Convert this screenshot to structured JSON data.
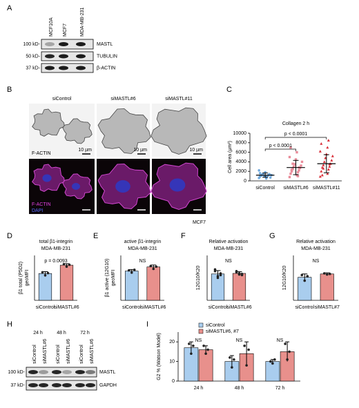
{
  "panel_labels": [
    "A",
    "B",
    "C",
    "D",
    "E",
    "F",
    "G",
    "H",
    "I"
  ],
  "blot_A": {
    "lanes": [
      "MCF10A",
      "MCF7",
      "MDA-MB-231"
    ],
    "rows": [
      {
        "marker": "100 kD-",
        "label": "MASTL"
      },
      {
        "marker": "50 kD-",
        "label": "TUBULIN"
      },
      {
        "marker": "37 kD-",
        "label": "β-ACTIN"
      }
    ]
  },
  "microscopy_B": {
    "columns": [
      "siControl",
      "siMASTL#6",
      "siMASTL#11"
    ],
    "scale_label": "10 µm",
    "stain_top": "F-ACTIN",
    "stain_bottom": [
      "F-ACTIN",
      "DAPI"
    ],
    "cell_line": "MCF7"
  },
  "blot_H": {
    "times": [
      "24 h",
      "48 h",
      "72 h"
    ],
    "lanes": [
      "siControl",
      "siMASTL#6",
      "siControl",
      "siMASTL#6",
      "siControl",
      "siMASTL#6"
    ],
    "rows": [
      {
        "marker": "100 kD-",
        "label": "MASTL"
      },
      {
        "marker": "37 kD-",
        "label": "GAPDH"
      }
    ]
  },
  "chart_data": [
    {
      "type": "strip",
      "title": "Collagen 2 h",
      "ylabel": [
        "Cell area (µm²)"
      ],
      "categories": [
        "siControl",
        "siMASTL#6",
        "siMASTL#11"
      ],
      "colors": [
        "#6fa8dc",
        "#e98c9a",
        "#d9303a"
      ],
      "markers": [
        "circle",
        "square",
        "triangle"
      ],
      "values": [
        [
          600,
          800,
          900,
          1000,
          1100,
          1200,
          1300,
          1400,
          1500,
          700,
          1000,
          1200,
          1800,
          2200,
          500,
          1600
        ],
        [
          800,
          1200,
          1500,
          1800,
          2000,
          2200,
          2500,
          2700,
          3000,
          3200,
          3500,
          4000,
          4500,
          5000,
          6000,
          7000,
          1000,
          2300,
          2800,
          3600
        ],
        [
          900,
          1500,
          2000,
          2400,
          2800,
          3000,
          3300,
          3600,
          4000,
          4300,
          4800,
          5200,
          5600,
          6200,
          7000,
          7800,
          8500,
          1200,
          3500,
          2600
        ]
      ],
      "mean": [
        1200,
        2800,
        3600
      ],
      "sd": [
        450,
        1500,
        1900
      ],
      "comparisons": [
        {
          "label": "p < 0.0001",
          "groups": [
            0,
            2
          ]
        },
        {
          "label": "p < 0.0001",
          "groups": [
            0,
            1
          ]
        }
      ],
      "ylim": [
        0,
        10000
      ],
      "yticks": [
        0,
        2000,
        4000,
        6000,
        8000,
        10000
      ]
    },
    {
      "type": "bar",
      "title": "total β1-integrin",
      "subtitle": "MDA-MB-231",
      "ylabel": [
        "β1 total (P5D2)",
        "geoMFI"
      ],
      "categories": [
        "siControl",
        "siMASTL#6"
      ],
      "colors": [
        "#a9cdee",
        "#e8908c"
      ],
      "values": [
        215,
        282
      ],
      "errors": [
        15,
        12
      ],
      "points": [
        [
          225,
          200,
          218
        ],
        [
          290,
          270,
          285
        ]
      ],
      "annotation": "p = 0.0093",
      "ylim": [
        0,
        360
      ]
    },
    {
      "type": "bar",
      "title": "active β1-integrin",
      "subtitle": "MDA-MB-231",
      "ylabel": [
        "β1 active (12G10)",
        "geoMFI"
      ],
      "categories": [
        "siControl",
        "siMASTL#6"
      ],
      "colors": [
        "#a9cdee",
        "#e8908c"
      ],
      "values": [
        235,
        268
      ],
      "errors": [
        12,
        15
      ],
      "points": [
        [
          240,
          222,
          245
        ],
        [
          275,
          252,
          270
        ]
      ],
      "annotation": "NS",
      "ylim": [
        0,
        360
      ]
    },
    {
      "type": "bar",
      "title": "Relative activation",
      "subtitle": "MDA-MB-231",
      "ylabel": [
        "12G10/K20"
      ],
      "categories": [
        "siControl",
        "siMASTL#6"
      ],
      "colors": [
        "#a9cdee",
        "#e8908c"
      ],
      "values": [
        0.47,
        0.48
      ],
      "errors": [
        0.06,
        0.03
      ],
      "points": [
        [
          0.52,
          0.4,
          0.45,
          0.55,
          0.43,
          0.48
        ],
        [
          0.5,
          0.46,
          0.45,
          0.52,
          0.48,
          0.47
        ]
      ],
      "annotation": "NS",
      "ylim": [
        0,
        0.8
      ]
    },
    {
      "type": "bar",
      "title": "Relative activation",
      "subtitle": "MDA-MB-231",
      "ylabel": [
        "12G10/K20"
      ],
      "categories": [
        "siControl",
        "siMASTL#7"
      ],
      "colors": [
        "#a9cdee",
        "#e8908c"
      ],
      "values": [
        0.41,
        0.47
      ],
      "errors": [
        0.06,
        0.02
      ],
      "points": [
        [
          0.45,
          0.35,
          0.43
        ],
        [
          0.48,
          0.46,
          0.47
        ]
      ],
      "annotation": "NS",
      "ylim": [
        0,
        0.8
      ]
    },
    {
      "type": "grouped_bar",
      "ylabel": [
        "G2 % (Watson Model)"
      ],
      "categories": [
        "24 h",
        "48 h",
        "72 h"
      ],
      "series": [
        {
          "name": "siControl",
          "color": "#a9cdee",
          "values": [
            17,
            10,
            10
          ],
          "errors": [
            3,
            3,
            1
          ],
          "points": [
            [
              19,
              14,
              18
            ],
            [
              12,
              7,
              11
            ],
            [
              10,
              9,
              11
            ]
          ]
        },
        {
          "name": "siMASTL#6, #7",
          "color": "#e8908c",
          "values": [
            16,
            14,
            15
          ],
          "errors": [
            2,
            6,
            5
          ],
          "points": [
            [
              18,
              14,
              16
            ],
            [
              18,
              8,
              16
            ],
            [
              19,
              11,
              15
            ]
          ]
        }
      ],
      "annotations": [
        "NS",
        "NS",
        "NS"
      ],
      "ylim": [
        0,
        25
      ],
      "yticks": [
        0,
        10,
        20
      ]
    }
  ]
}
